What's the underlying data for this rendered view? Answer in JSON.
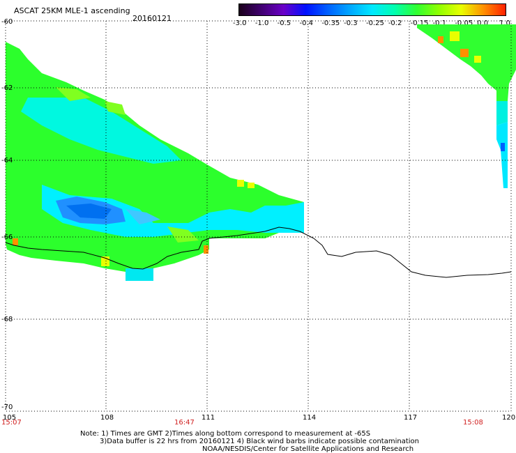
{
  "title": "ASCAT 25KM MLE-1 ascending",
  "date": "20160121",
  "colorbar": {
    "labels": [
      "-3.0",
      "-1.0",
      "-0.5",
      "-0.4",
      "-0.35",
      "-0.3",
      "-0.25",
      "-0.2",
      "-0.15",
      "-0.1",
      "-0.05",
      "0.0",
      "1.0"
    ],
    "colors": [
      "#1a001a",
      "#400070",
      "#6a00c8",
      "#0010ff",
      "#0060ff",
      "#00a8ff",
      "#00e8ff",
      "#00ffb0",
      "#30ff30",
      "#90ff00",
      "#e8ff00",
      "#ff9000",
      "#ff2000"
    ]
  },
  "axes": {
    "x_ticks": [
      "105",
      "108",
      "111",
      "114",
      "117",
      "120"
    ],
    "y_ticks": [
      "-60",
      "-62",
      "-64",
      "-66",
      "-68",
      "-70"
    ]
  },
  "times": {
    "left": "15:07",
    "middle": "16:47",
    "right": "15:08"
  },
  "notes": [
    "Note: 1) Times are GMT 2)Times along bottom correspond to measurement at -65S",
    "3)Data buffer is 22 hrs from 20160121 4) Black wind barbs indicate possible contamination",
    "NOAA/NESDIS/Center for Satellite Applications and Research"
  ]
}
